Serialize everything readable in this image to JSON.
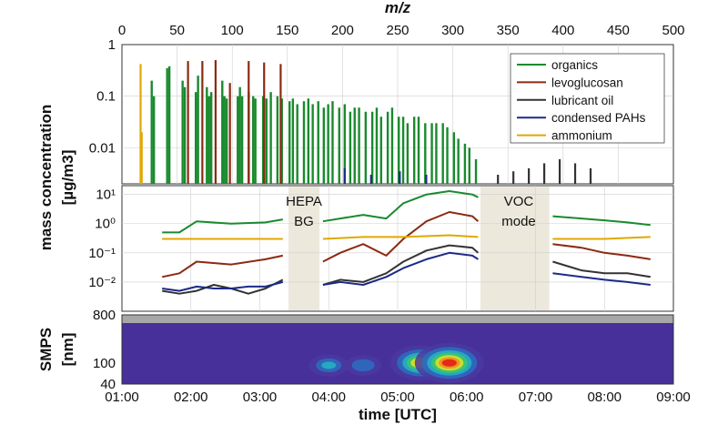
{
  "chart_data": [
    {
      "type": "bar",
      "panel": "spectrum",
      "xlabel": "m/z",
      "xlim": [
        0,
        500
      ],
      "x_ticks": [
        "0",
        "50",
        "100",
        "150",
        "200",
        "250",
        "300",
        "350",
        "400",
        "450",
        "500"
      ],
      "y_scale": "log",
      "ylim": [
        0.002,
        1
      ],
      "y_ticks": [
        "1",
        "0.1",
        "0.01"
      ],
      "grid": true,
      "legend_position": "top-right",
      "legend": [
        "organics",
        "levoglucosan",
        "lubricant oil",
        "condensed PAHs",
        "ammonium"
      ],
      "series_colors": {
        "organics": "#1a8a2e",
        "levoglucosan": "#8b2a12",
        "lubricant oil": "#333333",
        "condensed PAHs": "#1b2a8a",
        "ammonium": "#e0a800"
      },
      "series": [
        {
          "name": "ammonium",
          "x": [
            17,
            18
          ],
          "values": [
            0.42,
            0.02
          ]
        },
        {
          "name": "condensed PAHs",
          "x": [
            202,
            226,
            252,
            276
          ],
          "values": [
            0.004,
            0.003,
            0.0035,
            0.003
          ]
        },
        {
          "name": "levoglucosan",
          "x": [
            60,
            73,
            85,
            98,
            115,
            129,
            144
          ],
          "values": [
            0.48,
            0.48,
            0.5,
            0.18,
            0.48,
            0.45,
            0.42
          ]
        },
        {
          "name": "lubricant oil",
          "x": [
            341,
            355,
            369,
            383,
            397,
            411,
            425
          ],
          "values": [
            0.003,
            0.0035,
            0.004,
            0.005,
            0.006,
            0.005,
            0.004
          ]
        },
        {
          "name": "organics",
          "x": [
            27,
            29,
            41,
            43,
            55,
            57,
            67,
            69,
            77,
            79,
            81,
            91,
            93,
            95,
            105,
            107,
            109,
            115,
            119,
            121,
            128,
            131,
            135,
            141,
            145,
            152,
            155,
            159,
            165,
            169,
            173,
            178,
            183,
            187,
            191,
            197,
            202,
            207,
            211,
            215,
            221,
            227,
            231,
            235,
            241,
            245,
            251,
            255,
            259,
            265,
            269,
            275,
            281,
            285,
            291,
            295,
            301,
            305,
            311,
            315,
            321
          ],
          "values": [
            0.2,
            0.1,
            0.35,
            0.38,
            0.2,
            0.15,
            0.12,
            0.25,
            0.15,
            0.1,
            0.12,
            0.2,
            0.1,
            0.09,
            0.1,
            0.15,
            0.1,
            0.12,
            0.1,
            0.09,
            0.1,
            0.09,
            0.12,
            0.1,
            0.09,
            0.08,
            0.09,
            0.07,
            0.08,
            0.09,
            0.07,
            0.08,
            0.06,
            0.07,
            0.08,
            0.06,
            0.07,
            0.05,
            0.06,
            0.06,
            0.05,
            0.05,
            0.06,
            0.04,
            0.05,
            0.06,
            0.04,
            0.04,
            0.03,
            0.04,
            0.04,
            0.03,
            0.03,
            0.03,
            0.03,
            0.025,
            0.02,
            0.015,
            0.012,
            0.01,
            0.006
          ]
        }
      ]
    },
    {
      "type": "line",
      "panel": "time-series",
      "ylabel_main": "mass concentration",
      "ylabel_unit": "[µg/m3]",
      "y_scale": "log",
      "ylim": [
        0.001,
        20
      ],
      "y_ticks": [
        "10¹",
        "10⁰",
        "10⁻¹",
        "10⁻²"
      ],
      "xlim": [
        "01:00",
        "09:00"
      ],
      "annotations": [
        "HEPA",
        "BG",
        "VOC",
        "mode"
      ],
      "shaded_periods": [
        [
          "03:25",
          "03:52"
        ],
        [
          "06:12",
          "07:12"
        ]
      ],
      "series": [
        {
          "name": "organics",
          "t": [
            "01:35",
            "01:50",
            "02:05",
            "02:35",
            "03:05",
            "03:20",
            "03:55",
            "04:10",
            "04:30",
            "04:50",
            "05:05",
            "05:25",
            "05:45",
            "06:05",
            "06:10",
            "07:15",
            "07:40",
            "08:00",
            "08:20",
            "08:40"
          ],
          "values": [
            0.5,
            0.5,
            1.2,
            1.0,
            1.1,
            1.4,
            1.2,
            1.5,
            2.0,
            1.5,
            5.0,
            10,
            13,
            10,
            8,
            1.8,
            1.5,
            1.3,
            1.1,
            0.9
          ]
        },
        {
          "name": "levoglucosan",
          "t": [
            "01:35",
            "01:50",
            "02:05",
            "02:35",
            "03:05",
            "03:20",
            "03:55",
            "04:10",
            "04:30",
            "04:50",
            "05:05",
            "05:25",
            "05:45",
            "06:05",
            "06:10",
            "07:15",
            "07:40",
            "08:00",
            "08:20",
            "08:40"
          ],
          "values": [
            0.015,
            0.02,
            0.05,
            0.04,
            0.06,
            0.08,
            0.05,
            0.1,
            0.2,
            0.08,
            0.3,
            1.2,
            2.5,
            1.8,
            1.2,
            0.2,
            0.15,
            0.1,
            0.08,
            0.06
          ]
        },
        {
          "name": "ammonium",
          "t": [
            "01:35",
            "02:05",
            "02:35",
            "03:05",
            "03:20",
            "03:55",
            "04:30",
            "05:05",
            "05:45",
            "06:10",
            "07:15",
            "07:40",
            "08:00",
            "08:40"
          ],
          "values": [
            0.3,
            0.3,
            0.3,
            0.3,
            0.3,
            0.3,
            0.35,
            0.35,
            0.4,
            0.35,
            0.3,
            0.3,
            0.3,
            0.35
          ]
        },
        {
          "name": "lubricant oil",
          "t": [
            "01:35",
            "01:50",
            "02:05",
            "02:20",
            "02:35",
            "02:50",
            "03:05",
            "03:20",
            "03:55",
            "04:10",
            "04:30",
            "04:50",
            "05:05",
            "05:25",
            "05:45",
            "06:05",
            "06:10",
            "07:15",
            "07:40",
            "08:00",
            "08:20",
            "08:40"
          ],
          "values": [
            0.005,
            0.004,
            0.005,
            0.008,
            0.006,
            0.004,
            0.006,
            0.012,
            0.008,
            0.012,
            0.01,
            0.02,
            0.05,
            0.12,
            0.18,
            0.15,
            0.1,
            0.05,
            0.025,
            0.02,
            0.02,
            0.015
          ]
        },
        {
          "name": "condensed PAHs",
          "t": [
            "01:35",
            "01:50",
            "02:05",
            "02:20",
            "02:35",
            "02:50",
            "03:05",
            "03:20",
            "03:55",
            "04:10",
            "04:30",
            "04:50",
            "05:05",
            "05:25",
            "05:45",
            "06:05",
            "06:10",
            "07:15",
            "07:40",
            "08:00",
            "08:20",
            "08:40"
          ],
          "values": [
            0.006,
            0.005,
            0.007,
            0.006,
            0.006,
            0.007,
            0.007,
            0.01,
            0.008,
            0.01,
            0.008,
            0.015,
            0.03,
            0.06,
            0.1,
            0.08,
            0.06,
            0.02,
            0.015,
            0.012,
            0.01,
            0.008
          ]
        }
      ]
    },
    {
      "type": "heatmap",
      "panel": "SMPS",
      "ylabel_main": "SMPS",
      "ylabel_unit": "[nm]",
      "y_scale": "log",
      "ylim": [
        40,
        800
      ],
      "y_ticks": [
        "800",
        "100",
        "40"
      ],
      "xlabel": "time [UTC]",
      "x_ticks": [
        "01:00",
        "02:00",
        "03:00",
        "04:00",
        "05:00",
        "06:00",
        "07:00",
        "08:00",
        "09:00"
      ],
      "hotspots": [
        {
          "t": "04:00",
          "d": 90,
          "level": 0.45
        },
        {
          "t": "04:30",
          "d": 90,
          "level": 0.4
        },
        {
          "t": "05:20",
          "d": 100,
          "level": 0.85
        },
        {
          "t": "05:45",
          "d": 100,
          "level": 1.0
        }
      ]
    }
  ]
}
